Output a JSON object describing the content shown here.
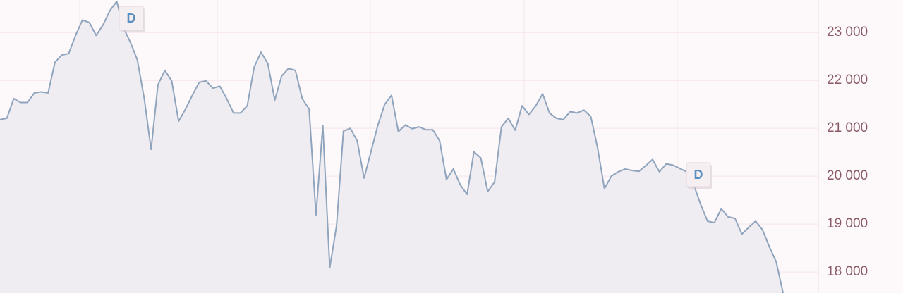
{
  "chart_data": {
    "type": "area",
    "categories": [
      null,
      null,
      null,
      null,
      null,
      null,
      null,
      null,
      null,
      null,
      null,
      null,
      null,
      null,
      null,
      null,
      null,
      null,
      null,
      null,
      null,
      null,
      null,
      null,
      null,
      null,
      null,
      null,
      null,
      null,
      null,
      null,
      null,
      null,
      null,
      null,
      null,
      null,
      null,
      null,
      null,
      null,
      null,
      null,
      null,
      null,
      null,
      null,
      null,
      null,
      null,
      null,
      null,
      null,
      null,
      null,
      null,
      null,
      null,
      null,
      null,
      null,
      null,
      null,
      null,
      null,
      null,
      null,
      null,
      null,
      null,
      null,
      null,
      null,
      null,
      null,
      null,
      null,
      null,
      null,
      null,
      null,
      null,
      null,
      null,
      null,
      null,
      null,
      null,
      null,
      null,
      null,
      null,
      null,
      null,
      null,
      null,
      null,
      null,
      null,
      null,
      null,
      null,
      null,
      null,
      null,
      null,
      null,
      null,
      null,
      null,
      null,
      null,
      null,
      null
    ],
    "values": [
      21180,
      21210,
      21620,
      21540,
      21540,
      21740,
      21760,
      21740,
      22380,
      22530,
      22560,
      22940,
      23260,
      23210,
      22940,
      23160,
      23460,
      23650,
      23090,
      22790,
      22430,
      21620,
      20560,
      21910,
      22210,
      21990,
      21150,
      21400,
      21690,
      21960,
      21990,
      21840,
      21880,
      21620,
      21320,
      21320,
      21470,
      22280,
      22590,
      22350,
      21590,
      22090,
      22250,
      22210,
      21620,
      21400,
      19190,
      21060,
      18090,
      18970,
      20940,
      21000,
      20740,
      19960,
      20510,
      21060,
      21500,
      21690,
      20930,
      21070,
      20990,
      21030,
      20970,
      20970,
      20740,
      19930,
      20150,
      19820,
      19620,
      20510,
      20380,
      19680,
      19880,
      21030,
      21210,
      20960,
      21470,
      21290,
      21470,
      21720,
      21320,
      21210,
      21180,
      21350,
      21320,
      21380,
      21250,
      20590,
      19740,
      20000,
      20090,
      20150,
      20120,
      20100,
      20220,
      20350,
      20090,
      20260,
      20230,
      20160,
      20090,
      19820,
      19410,
      19060,
      19030,
      19320,
      19150,
      19120,
      18790,
      18930,
      19060,
      18880,
      18530,
      18210,
      17560
    ],
    "line_color": "#8fa4bd",
    "fill_color": "#efecf2",
    "ylim": [
      17560,
      23680
    ],
    "yticks": [
      {
        "value": 18000,
        "label": "18 000"
      },
      {
        "value": 19000,
        "label": "19 000"
      },
      {
        "value": 20000,
        "label": "20 000"
      },
      {
        "value": 21000,
        "label": "21 000"
      },
      {
        "value": 22000,
        "label": "22 000"
      },
      {
        "value": 23000,
        "label": "23 000"
      }
    ],
    "y_axis_side": "right",
    "grid": true,
    "annotations": [
      "D",
      "D"
    ]
  }
}
